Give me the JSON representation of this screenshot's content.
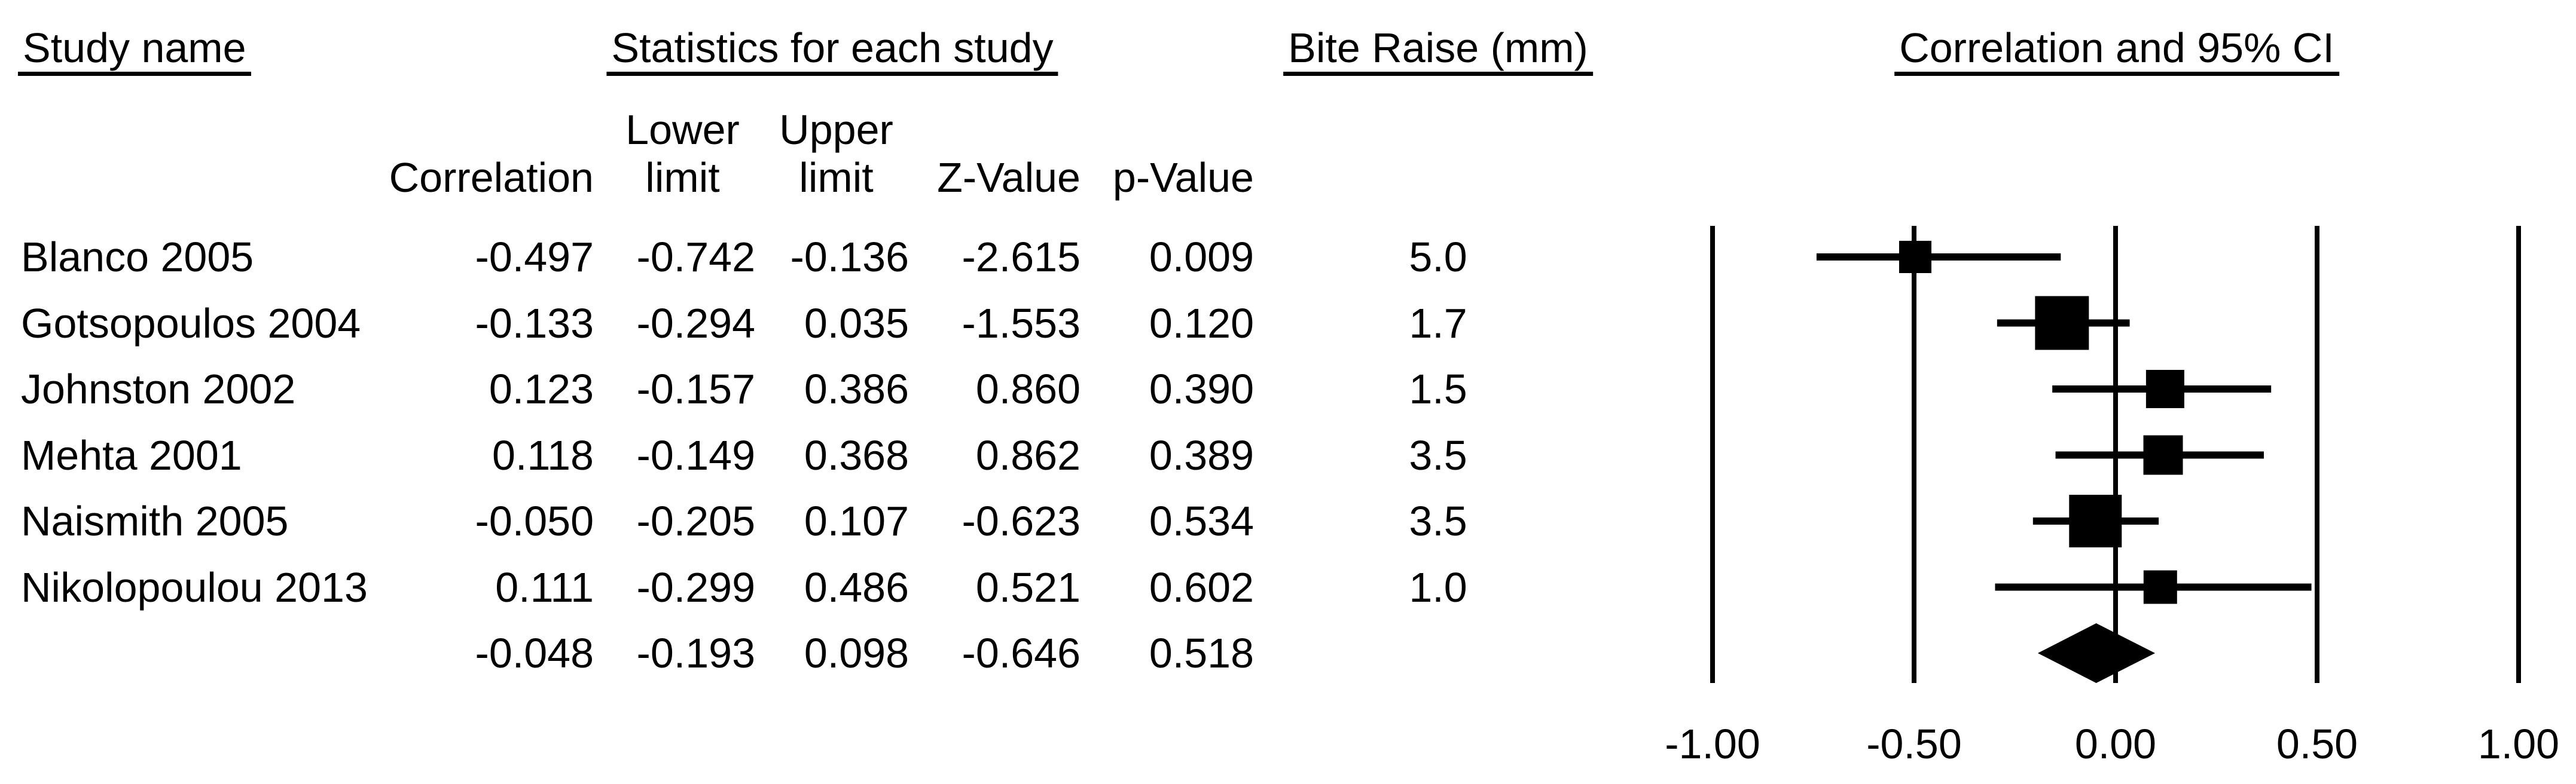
{
  "headers": {
    "study_name": "Study name",
    "statistics": "Statistics for each study",
    "bite_raise": "Bite Raise (mm)",
    "plot": "Correlation and 95% CI"
  },
  "columns": {
    "correlation": "Correlation",
    "lower_line1": "Lower",
    "lower_line2": "limit",
    "upper_line1": "Upper",
    "upper_line2": "limit",
    "z_value": "Z-Value",
    "p_value": "p-Value"
  },
  "studies": [
    {
      "name": "Blanco 2005",
      "correlation": "-0.497",
      "lower": "-0.742",
      "upper": "-0.136",
      "z": "-2.615",
      "p": "0.009",
      "bite_raise": "5.0"
    },
    {
      "name": "Gotsopoulos 2004",
      "correlation": "-0.133",
      "lower": "-0.294",
      "upper": "0.035",
      "z": "-1.553",
      "p": "0.120",
      "bite_raise": "1.7"
    },
    {
      "name": "Johnston 2002",
      "correlation": "0.123",
      "lower": "-0.157",
      "upper": "0.386",
      "z": "0.860",
      "p": "0.390",
      "bite_raise": "1.5"
    },
    {
      "name": "Mehta 2001",
      "correlation": "0.118",
      "lower": "-0.149",
      "upper": "0.368",
      "z": "0.862",
      "p": "0.389",
      "bite_raise": "3.5"
    },
    {
      "name": "Naismith 2005",
      "correlation": "-0.050",
      "lower": "-0.205",
      "upper": "0.107",
      "z": "-0.623",
      "p": "0.534",
      "bite_raise": "3.5"
    },
    {
      "name": "Nikolopoulou 2013",
      "correlation": "0.111",
      "lower": "-0.299",
      "upper": "0.486",
      "z": "0.521",
      "p": "0.602",
      "bite_raise": "1.0"
    }
  ],
  "summary": {
    "correlation": "-0.048",
    "lower": "-0.193",
    "upper": "0.098",
    "z": "-0.646",
    "p": "0.518"
  },
  "chart_data": {
    "type": "scatter",
    "subtype": "forest-plot",
    "title": "Correlation and 95% CI",
    "xlabel": "Correlation",
    "xlim": [
      -1.0,
      1.0
    ],
    "x_ticks": [
      -1.0,
      -0.5,
      0.0,
      0.5,
      1.0
    ],
    "x_tick_labels": [
      "-1.00",
      "-0.50",
      "0.00",
      "0.50",
      "1.00"
    ],
    "grid": "vertical-lines-at-ticks",
    "marker_color": "#000000",
    "studies": [
      {
        "name": "Blanco 2005",
        "correlation": -0.497,
        "lower": -0.742,
        "upper": -0.136,
        "marker_px": 54
      },
      {
        "name": "Gotsopoulos 2004",
        "correlation": -0.133,
        "lower": -0.294,
        "upper": 0.035,
        "marker_px": 90
      },
      {
        "name": "Johnston 2002",
        "correlation": 0.123,
        "lower": -0.157,
        "upper": 0.386,
        "marker_px": 64
      },
      {
        "name": "Mehta 2001",
        "correlation": 0.118,
        "lower": -0.149,
        "upper": 0.368,
        "marker_px": 66
      },
      {
        "name": "Naismith 2005",
        "correlation": -0.05,
        "lower": -0.205,
        "upper": 0.107,
        "marker_px": 88
      },
      {
        "name": "Nikolopoulou 2013",
        "correlation": 0.111,
        "lower": -0.299,
        "upper": 0.486,
        "marker_px": 56
      }
    ],
    "summary": {
      "shape": "diamond",
      "correlation": -0.048,
      "lower": -0.193,
      "upper": 0.098
    }
  }
}
